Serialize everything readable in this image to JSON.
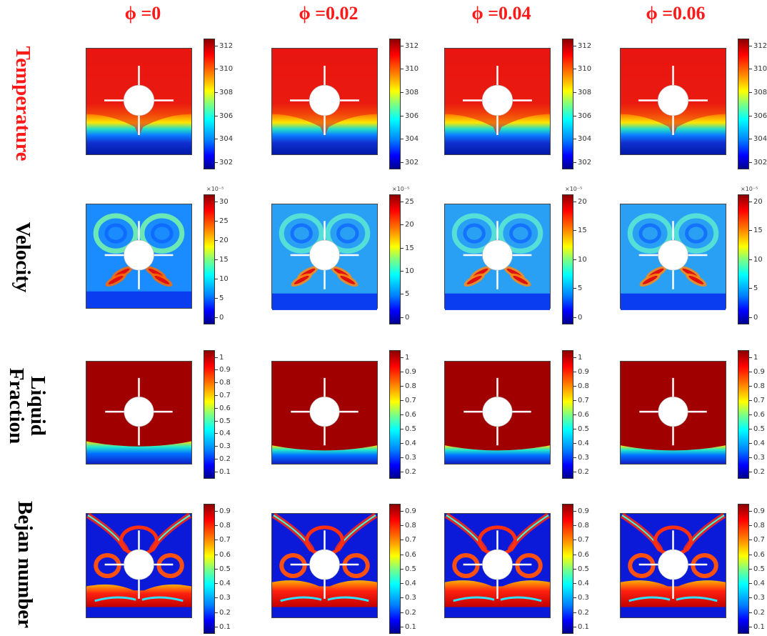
{
  "columns": [
    "ϕ =0",
    "ϕ =0.02",
    "ϕ =0.04",
    "ϕ =0.06"
  ],
  "rows": [
    {
      "label_lines": [
        "Temperature"
      ],
      "label_color": "#ff1a1a"
    },
    {
      "label_lines": [
        "Velocity"
      ],
      "label_color": "#000000"
    },
    {
      "label_lines": [
        "Liquid",
        "Fraction"
      ],
      "label_color": "#000000"
    },
    {
      "label_lines": [
        "Bejan number"
      ],
      "label_color": "#000000"
    }
  ],
  "colorbars": {
    "temperature": [
      {
        "ticks": [
          "312",
          "310",
          "308",
          "306",
          "304",
          "302"
        ],
        "multiplier": ""
      },
      {
        "ticks": [
          "312",
          "310",
          "308",
          "306",
          "304",
          "302"
        ],
        "multiplier": ""
      },
      {
        "ticks": [
          "312",
          "310",
          "308",
          "306",
          "304",
          "302"
        ],
        "multiplier": ""
      },
      {
        "ticks": [
          "312",
          "310",
          "308",
          "306",
          "304",
          "302"
        ],
        "multiplier": ""
      }
    ],
    "velocity": [
      {
        "ticks": [
          "30",
          "25",
          "20",
          "15",
          "10",
          "5",
          "0"
        ],
        "multiplier": "×10⁻⁵"
      },
      {
        "ticks": [
          "25",
          "20",
          "15",
          "10",
          "5",
          "0"
        ],
        "multiplier": "×10⁻⁵"
      },
      {
        "ticks": [
          "20",
          "15",
          "10",
          "5",
          "0"
        ],
        "multiplier": "×10⁻⁵"
      },
      {
        "ticks": [
          "20",
          "15",
          "10",
          "5",
          "0"
        ],
        "multiplier": "×10⁻⁵"
      }
    ],
    "liquid_fraction": [
      {
        "ticks": [
          "1",
          "0.9",
          "0.8",
          "0.7",
          "0.6",
          "0.5",
          "0.4",
          "0.3",
          "0.2",
          "0.1"
        ],
        "multiplier": ""
      },
      {
        "ticks": [
          "1",
          "0.9",
          "0.8",
          "0.7",
          "0.6",
          "0.5",
          "0.4",
          "0.3",
          "0.2"
        ],
        "multiplier": ""
      },
      {
        "ticks": [
          "1",
          "0.9",
          "0.8",
          "0.7",
          "0.6",
          "0.5",
          "0.4",
          "0.3",
          "0.2"
        ],
        "multiplier": ""
      },
      {
        "ticks": [
          "1",
          "0.9",
          "0.8",
          "0.7",
          "0.6",
          "0.5",
          "0.4",
          "0.3",
          "0.2"
        ],
        "multiplier": ""
      }
    ],
    "bejan": [
      {
        "ticks": [
          "0.9",
          "0.8",
          "0.7",
          "0.6",
          "0.5",
          "0.4",
          "0.3",
          "0.2",
          "0.1"
        ],
        "multiplier": ""
      },
      {
        "ticks": [
          "0.9",
          "0.8",
          "0.7",
          "0.6",
          "0.5",
          "0.4",
          "0.3",
          "0.2",
          "0.1"
        ],
        "multiplier": ""
      },
      {
        "ticks": [
          "0.9",
          "0.8",
          "0.7",
          "0.6",
          "0.5",
          "0.4",
          "0.3",
          "0.2",
          "0.1"
        ],
        "multiplier": ""
      },
      {
        "ticks": [
          "0.9",
          "0.8",
          "0.7",
          "0.6",
          "0.5",
          "0.4",
          "0.3",
          "0.2",
          "0.1"
        ],
        "multiplier": ""
      }
    ]
  },
  "colormap": [
    "#00008b",
    "#0000ff",
    "#0080ff",
    "#00ffff",
    "#7fff7f",
    "#ffff00",
    "#ff8c00",
    "#ff0000",
    "#8b0000"
  ]
}
